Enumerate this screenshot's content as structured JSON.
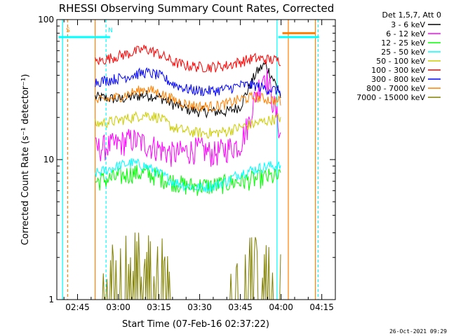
{
  "chart_data": {
    "type": "line",
    "title": "RHESSI Observing Summary Count Rates, Corrected",
    "xlabel": "Start Time (07-Feb-16 02:37:22)",
    "ylabel": "Corrected Count Rate (s⁻¹ detector⁻¹)",
    "y_scale": "log",
    "ylim": [
      1,
      100
    ],
    "y_ticks": [
      {
        "value": 1,
        "label": "1"
      },
      {
        "value": 10,
        "label": "10"
      },
      {
        "value": 100,
        "label": "100"
      }
    ],
    "xlim": [
      "02:37:22",
      "04:20:00"
    ],
    "x_ticks": [
      {
        "time": "02:45",
        "label": "02:45"
      },
      {
        "time": "03:00",
        "label": "03:00"
      },
      {
        "time": "03:15",
        "label": "03:15"
      },
      {
        "time": "03:30",
        "label": "03:30"
      },
      {
        "time": "03:45",
        "label": "03:45"
      },
      {
        "time": "04:00",
        "label": "04:00"
      },
      {
        "time": "04:15",
        "label": "04:15"
      }
    ],
    "legend_title": "Det 1,5,7, Att 0",
    "legend_position": "right",
    "data_window": [
      "02:51:30",
      "04:00:00"
    ],
    "series": [
      {
        "name": "3 - 6 keV",
        "color": "#000000",
        "x": [
          "02:52",
          "03:00",
          "03:05",
          "03:10",
          "03:15",
          "03:20",
          "03:25",
          "03:30",
          "03:35",
          "03:40",
          "03:45",
          "03:48",
          "03:51",
          "03:54",
          "03:57",
          "04:00"
        ],
        "y": [
          28,
          27,
          28,
          29,
          28,
          25,
          23,
          22,
          22,
          22,
          24,
          32,
          42,
          48,
          38,
          28
        ]
      },
      {
        "name": "6 - 12 keV",
        "color": "#ff00ff",
        "x": [
          "02:52",
          "03:00",
          "03:05",
          "03:10",
          "03:15",
          "03:20",
          "03:25",
          "03:30",
          "03:35",
          "03:40",
          "03:45",
          "03:48",
          "03:51",
          "03:54",
          "03:57",
          "04:00"
        ],
        "y": [
          12,
          13,
          14,
          13,
          12,
          11,
          11.5,
          12,
          11,
          12,
          13,
          18,
          30,
          42,
          26,
          14
        ]
      },
      {
        "name": "12 - 25 keV",
        "color": "#00ff00",
        "x": [
          "02:52",
          "03:00",
          "03:05",
          "03:10",
          "03:15",
          "03:20",
          "03:25",
          "03:30",
          "03:35",
          "03:40",
          "03:45",
          "03:50",
          "03:55",
          "04:00"
        ],
        "y": [
          7,
          7.5,
          8,
          8,
          7.5,
          7,
          6.5,
          6.5,
          6.5,
          6.8,
          7,
          7.2,
          7.5,
          7.5
        ]
      },
      {
        "name": "25 - 50 keV",
        "color": "#00ffff",
        "x": [
          "02:52",
          "03:00",
          "03:05",
          "03:10",
          "03:15",
          "03:20",
          "03:25",
          "03:30",
          "03:35",
          "03:40",
          "03:45",
          "03:50",
          "03:55",
          "04:00"
        ],
        "y": [
          8,
          9,
          9.5,
          9,
          8,
          7,
          6.5,
          6.3,
          6.5,
          7,
          8,
          8.5,
          9,
          9
        ]
      },
      {
        "name": "50 - 100 keV",
        "color": "#cccc00",
        "x": [
          "02:52",
          "03:00",
          "03:05",
          "03:10",
          "03:15",
          "03:20",
          "03:25",
          "03:30",
          "03:35",
          "03:40",
          "03:45",
          "03:50",
          "03:55",
          "04:00"
        ],
        "y": [
          18,
          19,
          20,
          21,
          20,
          17,
          16,
          15.5,
          15.5,
          16,
          17,
          18,
          19,
          20
        ]
      },
      {
        "name": "100 - 300 keV",
        "color": "#ff0000",
        "x": [
          "02:52",
          "03:00",
          "03:05",
          "03:10",
          "03:15",
          "03:20",
          "03:25",
          "03:30",
          "03:35",
          "03:40",
          "03:45",
          "03:50",
          "03:55",
          "04:00"
        ],
        "y": [
          50,
          55,
          58,
          62,
          57,
          50,
          47,
          46,
          46,
          47,
          50,
          53,
          52,
          51
        ]
      },
      {
        "name": "300 - 800 keV",
        "color": "#0000ff",
        "x": [
          "02:52",
          "03:00",
          "03:05",
          "03:10",
          "03:15",
          "03:20",
          "03:25",
          "03:30",
          "03:35",
          "03:40",
          "03:45",
          "03:50",
          "03:55",
          "04:00"
        ],
        "y": [
          36,
          38,
          40,
          42,
          40,
          35,
          32,
          31,
          31,
          32,
          34,
          34,
          32,
          31
        ]
      },
      {
        "name": "800 - 7000 keV",
        "color": "#ff8000",
        "x": [
          "02:52",
          "03:00",
          "03:05",
          "03:10",
          "03:15",
          "03:20",
          "03:25",
          "03:30",
          "03:35",
          "03:40",
          "03:45",
          "03:50",
          "03:55",
          "04:00"
        ],
        "y": [
          26,
          28,
          30,
          32,
          30,
          27,
          25,
          24,
          24,
          25,
          27,
          28,
          27,
          26
        ]
      },
      {
        "name": "7000 - 15000 keV",
        "color": "#808000",
        "x": [
          "02:52",
          "03:00",
          "03:05",
          "03:10",
          "03:15",
          "03:20",
          "03:25",
          "03:30",
          "03:35",
          "03:40",
          "03:45",
          "03:50",
          "03:55",
          "04:00"
        ],
        "y": [
          1,
          1.5,
          1.8,
          2.0,
          1.6,
          1.2,
          1,
          1,
          1,
          1.1,
          1.5,
          1.8,
          1.6,
          1.2
        ]
      }
    ],
    "annotations": [
      {
        "label": "S",
        "time": "02:40:00",
        "color": "#ff8000"
      },
      {
        "label": "N",
        "time": "02:55:30",
        "color": "#00ffff"
      }
    ],
    "time_markers": [
      {
        "time": "02:39:30",
        "color": "#00ffff",
        "style": "solid"
      },
      {
        "time": "02:41:20",
        "color": "#ff8000",
        "style": "dashed"
      },
      {
        "time": "02:51:30",
        "color": "#ff8000",
        "style": "solid"
      },
      {
        "time": "02:55:30",
        "color": "#00ffff",
        "style": "dashed"
      },
      {
        "time": "03:58:30",
        "color": "#00ffff",
        "style": "solid"
      },
      {
        "time": "04:02:40",
        "color": "#ff8000",
        "style": "solid"
      },
      {
        "time": "04:12:40",
        "color": "#ff8000",
        "style": "solid"
      },
      {
        "time": "04:13:40",
        "color": "#00ffff",
        "style": "dashed"
      }
    ],
    "status_bars": [
      {
        "start": "02:38:00",
        "end": "02:57:00",
        "color": "#00ffff",
        "value": 75
      },
      {
        "start": "04:00:30",
        "end": "04:12:30",
        "color": "#ff8000",
        "value": 80
      },
      {
        "start": "03:59:00",
        "end": "04:14:00",
        "color": "#00ffff",
        "value": 75
      }
    ]
  },
  "footer": {
    "timestamp": "26-Oct-2021 09:29"
  }
}
